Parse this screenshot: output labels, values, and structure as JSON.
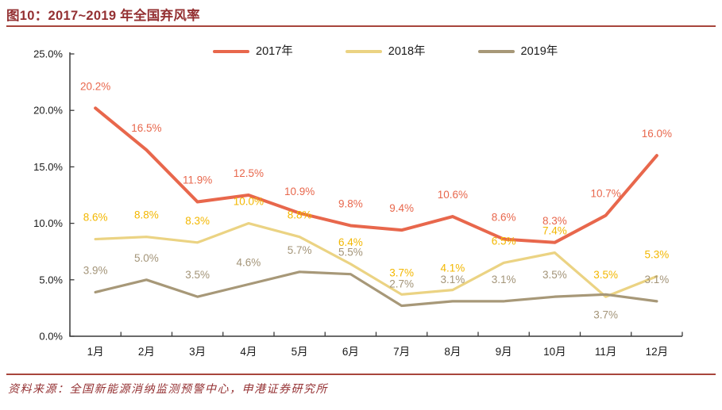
{
  "header": {
    "title": "图10：2017~2019 年全国弃风率"
  },
  "footer": {
    "source": "资料来源：全国新能源消纳监测预警中心，申港证券研究所"
  },
  "colors": {
    "title": "#943032",
    "rule": "#A8453C",
    "axis": "#3a3a3a",
    "tick_text": "#1a1a1a"
  },
  "chart_data": {
    "type": "line",
    "title": "2017~2019 年全国弃风率",
    "categories": [
      "1月",
      "2月",
      "3月",
      "4月",
      "5月",
      "6月",
      "7月",
      "8月",
      "9月",
      "10月",
      "11月",
      "12月"
    ],
    "series": [
      {
        "name": "2017年",
        "color": "#E8674C",
        "label_color": "#E8674C",
        "values": [
          20.2,
          16.5,
          11.9,
          12.5,
          10.9,
          9.8,
          9.4,
          10.6,
          8.6,
          8.3,
          10.7,
          16.0
        ]
      },
      {
        "name": "2018年",
        "color": "#EBD383",
        "label_color": "#F3B700",
        "values": [
          8.6,
          8.8,
          8.3,
          10.0,
          8.8,
          6.4,
          3.7,
          4.1,
          6.5,
          7.4,
          3.5,
          5.3
        ]
      },
      {
        "name": "2019年",
        "color": "#A79878",
        "label_color": "#A39478",
        "values": [
          3.9,
          5.0,
          3.5,
          4.6,
          5.7,
          5.5,
          2.7,
          3.1,
          3.1,
          3.5,
          3.7,
          3.1
        ]
      }
    ],
    "xlabel": "",
    "ylabel": "",
    "ylim": [
      0,
      25
    ],
    "ytick_values": [
      0,
      5,
      10,
      15,
      20,
      25
    ],
    "ytick_labels": [
      "0.0%",
      "5.0%",
      "10.0%",
      "15.0%",
      "20.0%",
      "25.0%"
    ],
    "value_suffix": "%",
    "grid": false,
    "legend_position": "top-center",
    "data_labels": true,
    "label_placement_exceptions": [
      {
        "series": "2019年",
        "category": "11月",
        "position": "below"
      }
    ]
  }
}
